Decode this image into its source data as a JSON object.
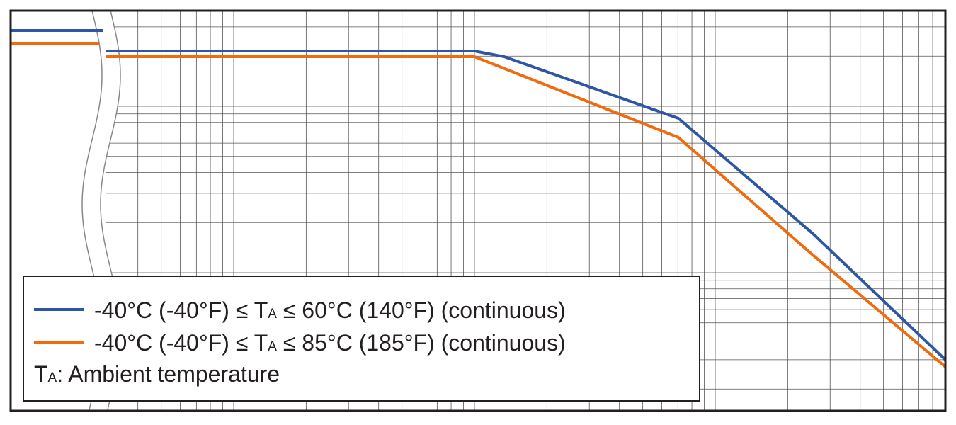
{
  "legend": {
    "entries": [
      {
        "color": "#2e56a3",
        "parts": [
          "-40°C (-40°F) ≤ T",
          "A",
          " ≤ 60°C (140°F) (continuous)"
        ]
      },
      {
        "color": "#f06b10",
        "parts": [
          "-40°C (-40°F) ≤ T",
          "A",
          " ≤ 85°C (185°F) (continuous)"
        ]
      }
    ],
    "note": [
      "T",
      "A",
      ": Ambient temperature"
    ]
  }
}
